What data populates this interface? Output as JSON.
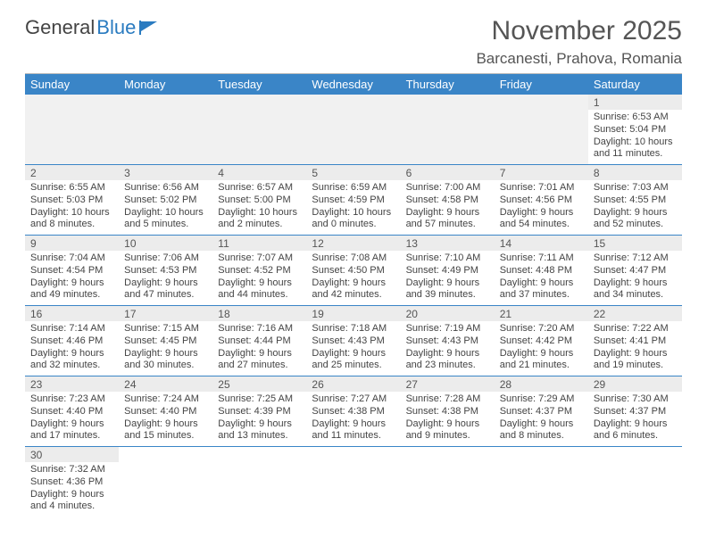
{
  "brand": {
    "part1": "General",
    "part2": "Blue"
  },
  "header": {
    "month_title": "November 2025",
    "location": "Barcanesti, Prahova, Romania",
    "title_fontsize": 30,
    "location_fontsize": 17
  },
  "colors": {
    "header_bg": "#3a85c7",
    "header_text": "#ffffff",
    "row_divider": "#3a85c7",
    "daynum_bg": "#ececec",
    "body_text": "#444444",
    "page_bg": "#ffffff",
    "brand_blue": "#2a7bc0"
  },
  "calendar": {
    "type": "table",
    "columns": [
      "Sunday",
      "Monday",
      "Tuesday",
      "Wednesday",
      "Thursday",
      "Friday",
      "Saturday"
    ],
    "col_fontsize": 13,
    "cell_fontsize": 11,
    "leading_blanks": 6,
    "days": [
      {
        "n": "1",
        "sunrise": "Sunrise: 6:53 AM",
        "sunset": "Sunset: 5:04 PM",
        "day1": "Daylight: 10 hours",
        "day2": "and 11 minutes."
      },
      {
        "n": "2",
        "sunrise": "Sunrise: 6:55 AM",
        "sunset": "Sunset: 5:03 PM",
        "day1": "Daylight: 10 hours",
        "day2": "and 8 minutes."
      },
      {
        "n": "3",
        "sunrise": "Sunrise: 6:56 AM",
        "sunset": "Sunset: 5:02 PM",
        "day1": "Daylight: 10 hours",
        "day2": "and 5 minutes."
      },
      {
        "n": "4",
        "sunrise": "Sunrise: 6:57 AM",
        "sunset": "Sunset: 5:00 PM",
        "day1": "Daylight: 10 hours",
        "day2": "and 2 minutes."
      },
      {
        "n": "5",
        "sunrise": "Sunrise: 6:59 AM",
        "sunset": "Sunset: 4:59 PM",
        "day1": "Daylight: 10 hours",
        "day2": "and 0 minutes."
      },
      {
        "n": "6",
        "sunrise": "Sunrise: 7:00 AM",
        "sunset": "Sunset: 4:58 PM",
        "day1": "Daylight: 9 hours",
        "day2": "and 57 minutes."
      },
      {
        "n": "7",
        "sunrise": "Sunrise: 7:01 AM",
        "sunset": "Sunset: 4:56 PM",
        "day1": "Daylight: 9 hours",
        "day2": "and 54 minutes."
      },
      {
        "n": "8",
        "sunrise": "Sunrise: 7:03 AM",
        "sunset": "Sunset: 4:55 PM",
        "day1": "Daylight: 9 hours",
        "day2": "and 52 minutes."
      },
      {
        "n": "9",
        "sunrise": "Sunrise: 7:04 AM",
        "sunset": "Sunset: 4:54 PM",
        "day1": "Daylight: 9 hours",
        "day2": "and 49 minutes."
      },
      {
        "n": "10",
        "sunrise": "Sunrise: 7:06 AM",
        "sunset": "Sunset: 4:53 PM",
        "day1": "Daylight: 9 hours",
        "day2": "and 47 minutes."
      },
      {
        "n": "11",
        "sunrise": "Sunrise: 7:07 AM",
        "sunset": "Sunset: 4:52 PM",
        "day1": "Daylight: 9 hours",
        "day2": "and 44 minutes."
      },
      {
        "n": "12",
        "sunrise": "Sunrise: 7:08 AM",
        "sunset": "Sunset: 4:50 PM",
        "day1": "Daylight: 9 hours",
        "day2": "and 42 minutes."
      },
      {
        "n": "13",
        "sunrise": "Sunrise: 7:10 AM",
        "sunset": "Sunset: 4:49 PM",
        "day1": "Daylight: 9 hours",
        "day2": "and 39 minutes."
      },
      {
        "n": "14",
        "sunrise": "Sunrise: 7:11 AM",
        "sunset": "Sunset: 4:48 PM",
        "day1": "Daylight: 9 hours",
        "day2": "and 37 minutes."
      },
      {
        "n": "15",
        "sunrise": "Sunrise: 7:12 AM",
        "sunset": "Sunset: 4:47 PM",
        "day1": "Daylight: 9 hours",
        "day2": "and 34 minutes."
      },
      {
        "n": "16",
        "sunrise": "Sunrise: 7:14 AM",
        "sunset": "Sunset: 4:46 PM",
        "day1": "Daylight: 9 hours",
        "day2": "and 32 minutes."
      },
      {
        "n": "17",
        "sunrise": "Sunrise: 7:15 AM",
        "sunset": "Sunset: 4:45 PM",
        "day1": "Daylight: 9 hours",
        "day2": "and 30 minutes."
      },
      {
        "n": "18",
        "sunrise": "Sunrise: 7:16 AM",
        "sunset": "Sunset: 4:44 PM",
        "day1": "Daylight: 9 hours",
        "day2": "and 27 minutes."
      },
      {
        "n": "19",
        "sunrise": "Sunrise: 7:18 AM",
        "sunset": "Sunset: 4:43 PM",
        "day1": "Daylight: 9 hours",
        "day2": "and 25 minutes."
      },
      {
        "n": "20",
        "sunrise": "Sunrise: 7:19 AM",
        "sunset": "Sunset: 4:43 PM",
        "day1": "Daylight: 9 hours",
        "day2": "and 23 minutes."
      },
      {
        "n": "21",
        "sunrise": "Sunrise: 7:20 AM",
        "sunset": "Sunset: 4:42 PM",
        "day1": "Daylight: 9 hours",
        "day2": "and 21 minutes."
      },
      {
        "n": "22",
        "sunrise": "Sunrise: 7:22 AM",
        "sunset": "Sunset: 4:41 PM",
        "day1": "Daylight: 9 hours",
        "day2": "and 19 minutes."
      },
      {
        "n": "23",
        "sunrise": "Sunrise: 7:23 AM",
        "sunset": "Sunset: 4:40 PM",
        "day1": "Daylight: 9 hours",
        "day2": "and 17 minutes."
      },
      {
        "n": "24",
        "sunrise": "Sunrise: 7:24 AM",
        "sunset": "Sunset: 4:40 PM",
        "day1": "Daylight: 9 hours",
        "day2": "and 15 minutes."
      },
      {
        "n": "25",
        "sunrise": "Sunrise: 7:25 AM",
        "sunset": "Sunset: 4:39 PM",
        "day1": "Daylight: 9 hours",
        "day2": "and 13 minutes."
      },
      {
        "n": "26",
        "sunrise": "Sunrise: 7:27 AM",
        "sunset": "Sunset: 4:38 PM",
        "day1": "Daylight: 9 hours",
        "day2": "and 11 minutes."
      },
      {
        "n": "27",
        "sunrise": "Sunrise: 7:28 AM",
        "sunset": "Sunset: 4:38 PM",
        "day1": "Daylight: 9 hours",
        "day2": "and 9 minutes."
      },
      {
        "n": "28",
        "sunrise": "Sunrise: 7:29 AM",
        "sunset": "Sunset: 4:37 PM",
        "day1": "Daylight: 9 hours",
        "day2": "and 8 minutes."
      },
      {
        "n": "29",
        "sunrise": "Sunrise: 7:30 AM",
        "sunset": "Sunset: 4:37 PM",
        "day1": "Daylight: 9 hours",
        "day2": "and 6 minutes."
      },
      {
        "n": "30",
        "sunrise": "Sunrise: 7:32 AM",
        "sunset": "Sunset: 4:36 PM",
        "day1": "Daylight: 9 hours",
        "day2": "and 4 minutes."
      }
    ]
  }
}
